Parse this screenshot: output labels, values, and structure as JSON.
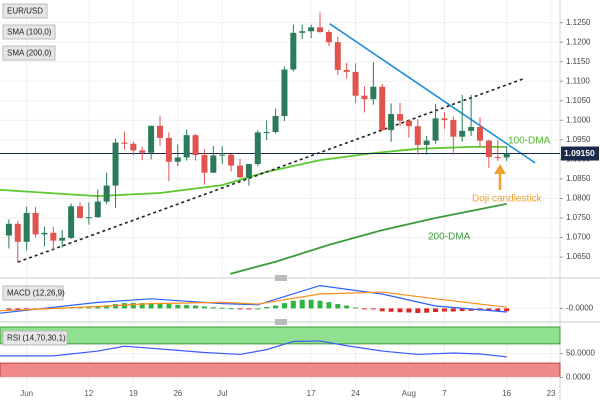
{
  "chart_data": {
    "type": "candlestick",
    "title": "EUR/USD",
    "xlim": [
      -1,
      62
    ],
    "xticks": [
      {
        "value": 2,
        "label": "Jun"
      },
      {
        "value": 9,
        "label": "12"
      },
      {
        "value": 14,
        "label": "19"
      },
      {
        "value": 19,
        "label": "26"
      },
      {
        "value": 24,
        "label": "Jul"
      },
      {
        "value": 34,
        "label": "17"
      },
      {
        "value": 39,
        "label": "24"
      },
      {
        "value": 45,
        "label": "Aug"
      },
      {
        "value": 49,
        "label": "7"
      },
      {
        "value": 56,
        "label": "16"
      },
      {
        "value": 61,
        "label": "23"
      }
    ],
    "ylim": [
      1.0604,
      1.1308
    ],
    "yticks": [
      {
        "value": 1.065,
        "label": "1.0650"
      },
      {
        "value": 1.07,
        "label": "1.0700"
      },
      {
        "value": 1.075,
        "label": "1.0750"
      },
      {
        "value": 1.08,
        "label": "1.0800"
      },
      {
        "value": 1.085,
        "label": "1.0850"
      },
      {
        "value": 1.09,
        "label": "1.0900"
      },
      {
        "value": 1.095,
        "label": "1.0950"
      },
      {
        "value": 1.1,
        "label": "1.1000"
      },
      {
        "value": 1.105,
        "label": "1.1050"
      },
      {
        "value": 1.11,
        "label": "1.1100"
      },
      {
        "value": 1.115,
        "label": "1.1150"
      },
      {
        "value": 1.12,
        "label": "1.1200"
      },
      {
        "value": 1.125,
        "label": "1.1250"
      }
    ],
    "grid": true,
    "up_color": "#2b7a5a",
    "down_color": "#e0544f",
    "open": [
      1.0705,
      1.0735,
      1.0689,
      1.0763,
      1.0708,
      1.0712,
      1.0692,
      1.0699,
      1.078,
      1.075,
      1.0752,
      1.0792,
      1.0833,
      1.0943,
      1.094,
      1.0923,
      1.0917,
      1.0986,
      1.0955,
      1.0894,
      1.0905,
      1.0962,
      1.0911,
      1.0866,
      1.091,
      1.0912,
      1.0884,
      1.0854,
      1.0888,
      1.0969,
      1.097,
      1.1011,
      1.113,
      1.1224,
      1.1228,
      1.1238,
      1.1226,
      1.12,
      1.1129,
      1.1124,
      1.1063,
      1.1054,
      1.1086,
      1.0975,
      1.1016,
      1.0999,
      1.0985,
      1.0937,
      1.0948,
      1.1005,
      1.1001,
      1.0958,
      1.0973,
      1.0983,
      1.0948,
      1.0906,
      1.0905
    ],
    "high": [
      1.0746,
      1.0743,
      1.0779,
      1.0778,
      1.0728,
      1.0727,
      1.0719,
      1.0787,
      1.079,
      1.079,
      1.0823,
      1.0866,
      1.0953,
      1.0971,
      1.0946,
      1.0932,
      1.0986,
      1.1012,
      1.0969,
      1.0938,
      1.0976,
      1.0966,
      1.0926,
      1.0934,
      1.0934,
      1.0914,
      1.0902,
      1.0888,
      1.0975,
      1.1,
      1.103,
      1.1138,
      1.1245,
      1.1245,
      1.1245,
      1.1276,
      1.1232,
      1.1214,
      1.1147,
      1.1146,
      1.1087,
      1.1149,
      1.1093,
      1.1043,
      1.1045,
      1.1002,
      1.1003,
      1.096,
      1.1042,
      1.1021,
      1.101,
      1.1065,
      1.1065,
      1.1008,
      1.095,
      1.095,
      1.0933
    ],
    "low": [
      1.0672,
      1.0635,
      1.0667,
      1.07,
      1.0677,
      1.0667,
      1.0674,
      1.0696,
      1.0749,
      1.0733,
      1.075,
      1.0785,
      1.0776,
      1.0925,
      1.091,
      1.0898,
      1.09,
      1.0935,
      1.0844,
      1.0883,
      1.0897,
      1.0897,
      1.0835,
      1.0865,
      1.0888,
      1.0869,
      1.0852,
      1.0833,
      1.0882,
      1.0949,
      1.0966,
      1.0998,
      1.1125,
      1.1208,
      1.121,
      1.1224,
      1.119,
      1.1116,
      1.1107,
      1.1045,
      1.102,
      1.104,
      1.0973,
      1.0945,
      1.0985,
      1.0956,
      1.0912,
      1.0912,
      1.094,
      1.0978,
      1.0912,
      1.0945,
      1.096,
      1.0932,
      1.0878,
      1.0896,
      1.0896
    ],
    "close": [
      1.0735,
      1.0689,
      1.0763,
      1.0708,
      1.0712,
      1.0692,
      1.0699,
      1.078,
      1.075,
      1.0752,
      1.0792,
      1.0833,
      1.0943,
      1.094,
      1.0923,
      1.0917,
      1.0986,
      1.0955,
      1.0894,
      1.0905,
      1.0962,
      1.0911,
      1.0866,
      1.091,
      1.0912,
      1.0884,
      1.0854,
      1.0888,
      1.0969,
      1.097,
      1.1011,
      1.113,
      1.1224,
      1.1228,
      1.1238,
      1.1226,
      1.12,
      1.1129,
      1.1124,
      1.1063,
      1.1054,
      1.1086,
      1.0975,
      1.1016,
      1.0999,
      1.0985,
      1.0937,
      1.0948,
      1.1005,
      1.1001,
      1.0958,
      1.0973,
      1.0983,
      1.0948,
      1.0906,
      1.0905,
      1.0915
    ],
    "series": [
      {
        "name": "SMA (100,0)",
        "color": "#5cc92e",
        "x": [
          -1,
          10,
          17,
          24,
          29,
          35,
          41,
          46,
          52,
          56
        ],
        "values": [
          1.0822,
          1.0806,
          1.0814,
          1.0834,
          1.0868,
          1.0898,
          1.0916,
          1.0927,
          1.0932,
          1.0932
        ]
      },
      {
        "name": "SMA (200,0)",
        "color": "#3c9a3c",
        "x": [
          24.9,
          30,
          36,
          42,
          48,
          56
        ],
        "values": [
          1.0607,
          1.0638,
          1.0681,
          1.0719,
          1.075,
          1.0786
        ]
      }
    ],
    "trendlines": [
      {
        "color": "#1e8fd6",
        "dashed": false,
        "x": [
          36.1,
          59.2
        ],
        "values": [
          1.1247,
          1.0891
        ]
      },
      {
        "color": "#222222",
        "dashed": true,
        "x": [
          1,
          58.1
        ],
        "values": [
          1.0637,
          1.1108
        ]
      }
    ],
    "price_line": {
      "value": 1.0915,
      "label": "1.09150",
      "color": "#1b2a4a"
    },
    "annotations": [
      "100-DMA",
      "Doji candlestick",
      "200-DMA"
    ],
    "macd": {
      "label": "MACD (12,26,9)",
      "ylim": [
        -0.004,
        0.011
      ],
      "yticks": [
        {
          "value": 0,
          "label": "-0.0000"
        }
      ],
      "up_color": "#2fb344",
      "down_color": "#e02424",
      "histogram": [
        -0.0005,
        -0.0006,
        -0.0004,
        -0.0005,
        -0.0004,
        0.0002,
        0.0003,
        0.0005,
        0.0006,
        0.0008,
        0.001,
        0.0013,
        0.0018,
        0.0022,
        0.0023,
        0.0022,
        0.0022,
        0.0022,
        0.0018,
        0.0015,
        0.0014,
        0.0012,
        0.0008,
        0.0005,
        0.0003,
        0.0001,
        -0.0002,
        -0.0003,
        0,
        0.0006,
        0.0012,
        0.0022,
        0.0032,
        0.0036,
        0.0036,
        0.0032,
        0.0026,
        0.0018,
        0.0012,
        0.0004,
        -0.0002,
        -0.0004,
        -0.0012,
        -0.0014,
        -0.0016,
        -0.0017,
        -0.0019,
        -0.0018,
        -0.0015,
        -0.0013,
        -0.0013,
        -0.0011,
        -0.001,
        -0.0009,
        -0.001,
        -0.0012,
        -0.0012
      ],
      "series": [
        {
          "color": "#2962ff",
          "x": [
            -1,
            10,
            16,
            24,
            28,
            35,
            42,
            48,
            56
          ],
          "values": [
            -0.002,
            0.0025,
            0.004,
            0.002,
            0.0015,
            0.0095,
            0.006,
            0.001,
            -0.0015
          ]
        },
        {
          "color": "#ff8c1a",
          "x": [
            -1,
            10,
            16,
            24,
            28,
            35,
            42,
            48,
            56
          ],
          "values": [
            -0.001,
            0.0008,
            0.002,
            0.0025,
            0.0018,
            0.006,
            0.0068,
            0.004,
            0.0005
          ]
        }
      ]
    },
    "rsi": {
      "label": "RSI (14,70,30,1)",
      "ylim": [
        -30,
        105
      ],
      "yticks": [
        {
          "value": 50,
          "label": "50.0000"
        },
        {
          "value": 0,
          "label": "0.0000"
        }
      ],
      "overbought": 70,
      "oversold": 30,
      "series": [
        {
          "color": "#3d5afe",
          "x": [
            -1,
            5,
            10,
            13,
            18,
            22,
            26,
            29,
            32,
            35,
            38,
            42,
            46,
            50,
            53,
            56
          ],
          "values": [
            45,
            45,
            55,
            65,
            58,
            52,
            48,
            58,
            75,
            76,
            66,
            55,
            48,
            51,
            49,
            43
          ]
        }
      ]
    }
  }
}
